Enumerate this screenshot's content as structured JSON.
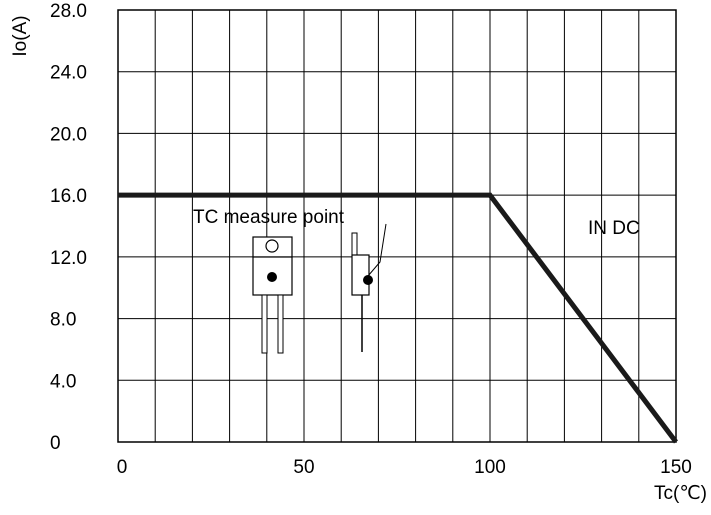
{
  "chart_data": {
    "type": "line",
    "title": "",
    "xlabel": "Tc(℃)",
    "ylabel": "Io(A)",
    "xlim": [
      0,
      150
    ],
    "ylim": [
      0,
      28
    ],
    "x_ticks": [
      0,
      50,
      100,
      150
    ],
    "x_tick_labels": [
      "0",
      "50",
      "100",
      "150"
    ],
    "y_ticks": [
      0,
      4,
      8,
      12,
      16,
      20,
      24,
      28
    ],
    "y_tick_labels": [
      "0",
      "4.0",
      "8.0",
      "12.0",
      "16.0",
      "20.0",
      "24.0",
      "28.0"
    ],
    "grid": true,
    "series": [
      {
        "name": "IN DC",
        "x": [
          0,
          100,
          150
        ],
        "y": [
          16,
          16,
          0
        ]
      }
    ],
    "annotations": [
      {
        "text": "TC measure point"
      },
      {
        "text": "IN DC"
      }
    ]
  }
}
